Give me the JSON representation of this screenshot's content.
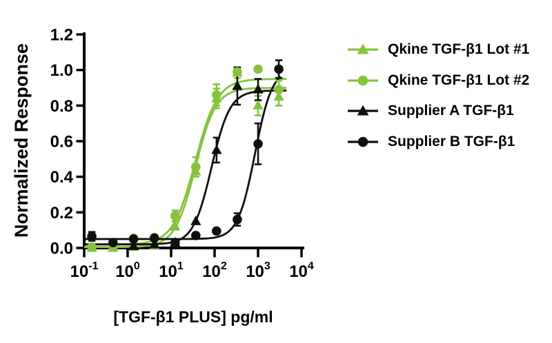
{
  "chart_data": {
    "type": "line",
    "subtype": "dose-response-scatter-with-fit",
    "title": "",
    "xlabel": "[TGF-β1 PLUS] pg/ml",
    "ylabel": "Normalized Response",
    "x_scale": "log10",
    "xlim": [
      0.1,
      10000
    ],
    "ylim": [
      0.0,
      1.2
    ],
    "grid": false,
    "legend_position": "right",
    "background_color": "#ffffff",
    "axis_color": "#000000",
    "x_ticks": [
      {
        "base": "10",
        "sup": "-1",
        "value": 0.1
      },
      {
        "base": "10",
        "sup": "0",
        "value": 1
      },
      {
        "base": "10",
        "sup": "1",
        "value": 10
      },
      {
        "base": "10",
        "sup": "2",
        "value": 100
      },
      {
        "base": "10",
        "sup": "3",
        "value": 1000
      },
      {
        "base": "10",
        "sup": "4",
        "value": 10000
      }
    ],
    "y_ticks": [
      {
        "value": 0.0,
        "label": "0.0"
      },
      {
        "value": 0.2,
        "label": "0.2"
      },
      {
        "value": 0.4,
        "label": "0.4"
      },
      {
        "value": 0.6,
        "label": "0.6"
      },
      {
        "value": 0.8,
        "label": "0.8"
      },
      {
        "value": 1.0,
        "label": "1.0"
      },
      {
        "value": 1.2,
        "label": "1.2"
      }
    ],
    "series": [
      {
        "id": "qkine-lot1",
        "name": "Qkine TGF-β1 Lot #1",
        "marker": "triangle",
        "color": "#85C23E",
        "fit": {
          "bottom": 0.005,
          "top": 0.9,
          "ec50": 36,
          "hill": 1.85,
          "curve_xmax": 4500
        },
        "points": [
          {
            "x": 0.15,
            "y": 0.0
          },
          {
            "x": 0.46,
            "y": 0.0
          },
          {
            "x": 1.37,
            "y": 0.005
          },
          {
            "x": 4.12,
            "y": 0.015
          },
          {
            "x": 12.35,
            "y": 0.12
          },
          {
            "x": 37,
            "y": 0.43
          },
          {
            "x": 111,
            "y": 0.84,
            "err": 0.055
          },
          {
            "x": 333,
            "y": 0.985,
            "err": 0.03
          },
          {
            "x": 1000,
            "y": 0.8,
            "err": 0.055
          },
          {
            "x": 3000,
            "y": 0.85,
            "err": 0.05
          }
        ]
      },
      {
        "id": "qkine-lot2",
        "name": "Qkine TGF-β1 Lot #2",
        "marker": "circle",
        "color": "#85C23E",
        "fit": {
          "bottom": 0.02,
          "top": 0.95,
          "ec50": 36,
          "hill": 1.7,
          "curve_xmax": 4500
        },
        "points": [
          {
            "x": 0.15,
            "y": 0.005
          },
          {
            "x": 0.46,
            "y": 0.005
          },
          {
            "x": 1.37,
            "y": 0.055
          },
          {
            "x": 4.12,
            "y": 0.06
          },
          {
            "x": 12.35,
            "y": 0.18,
            "err": 0.03
          },
          {
            "x": 37,
            "y": 0.455,
            "err": 0.055
          },
          {
            "x": 111,
            "y": 0.86,
            "err": 0.06
          },
          {
            "x": 333,
            "y": 0.99
          },
          {
            "x": 1000,
            "y": 1.005
          },
          {
            "x": 3000,
            "y": 0.89,
            "err": 0.05
          }
        ]
      },
      {
        "id": "supplier-a",
        "name": "Supplier A TGF-β1",
        "marker": "triangle",
        "color": "#0f0f0f",
        "fit": {
          "bottom": 0.02,
          "top": 0.885,
          "ec50": 85,
          "hill": 2.05,
          "curve_xmax": 4500
        },
        "points": [
          {
            "x": 1.37,
            "y": 0.01
          },
          {
            "x": 4.12,
            "y": 0.02
          },
          {
            "x": 12.35,
            "y": 0.03
          },
          {
            "x": 37,
            "y": 0.15
          },
          {
            "x": 111,
            "y": 0.55,
            "err": 0.07
          },
          {
            "x": 333,
            "y": 0.91,
            "err": 0.105
          },
          {
            "x": 1000,
            "y": 0.89,
            "err": 0.06
          }
        ]
      },
      {
        "id": "supplier-b",
        "name": "Supplier B TGF-β1",
        "marker": "circle",
        "color": "#0f0f0f",
        "fit": {
          "bottom": 0.05,
          "top": 1.01,
          "ec50": 850,
          "hill": 2.2,
          "curve_xmax": 3300
        },
        "points": [
          {
            "x": 0.15,
            "y": 0.065,
            "err": 0.025
          },
          {
            "x": 0.46,
            "y": 0.03
          },
          {
            "x": 1.37,
            "y": 0.05
          },
          {
            "x": 4.12,
            "y": 0.055
          },
          {
            "x": 12.35,
            "y": 0.03
          },
          {
            "x": 37,
            "y": 0.07
          },
          {
            "x": 111,
            "y": 0.095
          },
          {
            "x": 333,
            "y": 0.16,
            "err": 0.035
          },
          {
            "x": 1000,
            "y": 0.585,
            "err": 0.115
          },
          {
            "x": 3000,
            "y": 1.005,
            "err": 0.05
          }
        ]
      }
    ]
  }
}
